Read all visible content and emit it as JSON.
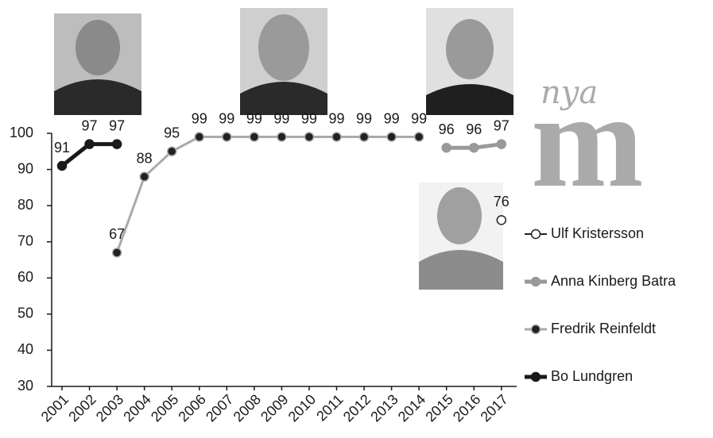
{
  "chart_data": {
    "type": "line",
    "categories": [
      "2001",
      "2002",
      "2003",
      "2004",
      "2005",
      "2006",
      "2007",
      "2008",
      "2009",
      "2010",
      "2011",
      "2012",
      "2013",
      "2014",
      "2015",
      "2016",
      "2017"
    ],
    "series": [
      {
        "name": "Bo Lundgren",
        "color": "#1a1a1a",
        "marker_color": "#1a1a1a",
        "line_width": 5,
        "values": [
          91,
          97,
          97,
          null,
          null,
          null,
          null,
          null,
          null,
          null,
          null,
          null,
          null,
          null,
          null,
          null,
          null
        ]
      },
      {
        "name": "Fredrik Reinfeldt",
        "color": "#aaaaaa",
        "marker_color": "#222222",
        "line_width": 3,
        "values": [
          null,
          null,
          67,
          88,
          95,
          99,
          99,
          99,
          99,
          99,
          99,
          99,
          99,
          99,
          null,
          null,
          null
        ]
      },
      {
        "name": "Anna Kinberg Batra",
        "color": "#999999",
        "marker_color": "#999999",
        "line_width": 5,
        "values": [
          null,
          null,
          null,
          null,
          null,
          null,
          null,
          null,
          null,
          null,
          null,
          null,
          null,
          null,
          96,
          96,
          97
        ]
      },
      {
        "name": "Ulf Kristersson",
        "color": "#222222",
        "marker_color": "#ffffff",
        "line_width": 2,
        "values": [
          null,
          null,
          null,
          null,
          null,
          null,
          null,
          null,
          null,
          null,
          null,
          null,
          null,
          null,
          null,
          null,
          76
        ]
      }
    ],
    "ylim": [
      30,
      100
    ],
    "yticks": [
      30,
      40,
      50,
      60,
      70,
      80,
      90,
      100
    ],
    "data_labels": true,
    "legend_position": "right"
  },
  "logo": {
    "script": "nya",
    "letter": "m"
  }
}
